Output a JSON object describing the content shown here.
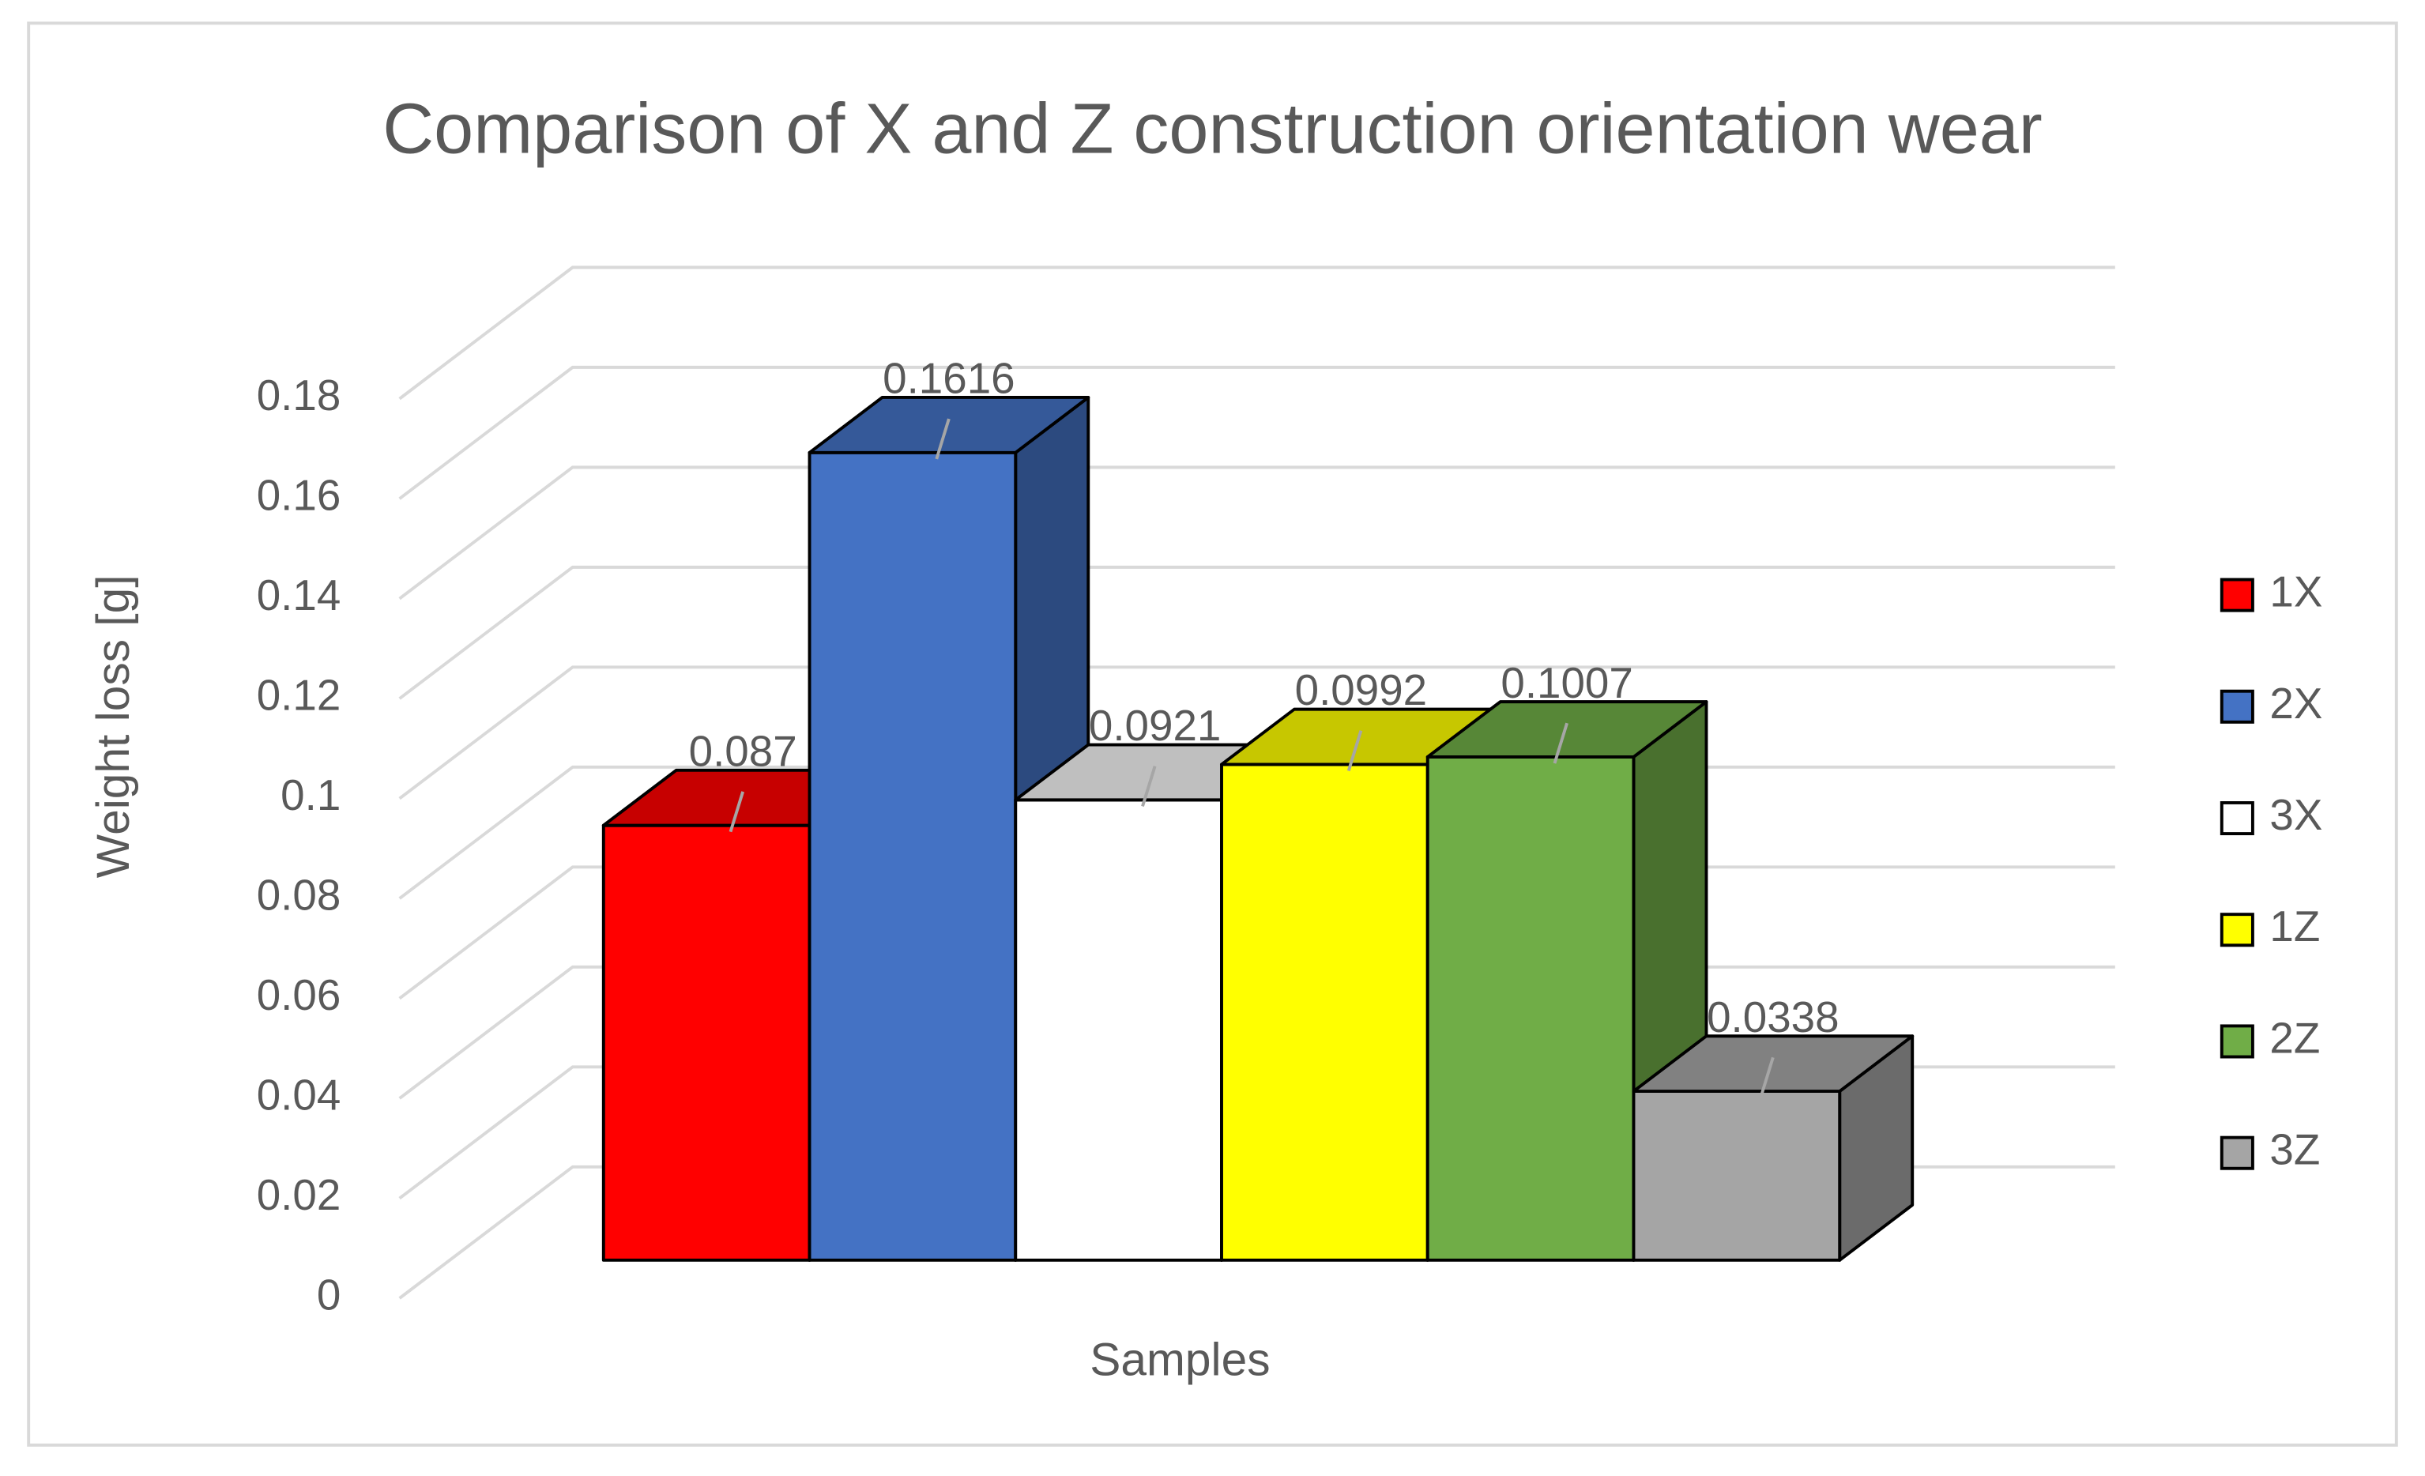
{
  "chart_data": {
    "type": "bar3d",
    "title": "Comparison of X and Z construction orientation wear",
    "x_label": "Samples",
    "y_label": "Weight loss [g]",
    "ylim": [
      0,
      0.18
    ],
    "yticks": [
      0,
      0.02,
      0.04,
      0.06,
      0.08,
      0.1,
      0.12,
      0.14,
      0.16,
      0.18
    ],
    "grid": true,
    "legend": "right",
    "series": [
      {
        "name": "1X",
        "color": "#ff0000",
        "values": [
          0.087
        ]
      },
      {
        "name": "2X",
        "color": "#4472c4",
        "values": [
          0.1616
        ]
      },
      {
        "name": "3X",
        "color": "#ffffff",
        "values": [
          0.0921
        ]
      },
      {
        "name": "1Z",
        "color": "#ffff00",
        "values": [
          0.0992
        ]
      },
      {
        "name": "2Z",
        "color": "#70ad47",
        "values": [
          0.1007
        ]
      },
      {
        "name": "3Z",
        "color": "#a5a5a5",
        "values": [
          0.0338
        ]
      }
    ]
  }
}
